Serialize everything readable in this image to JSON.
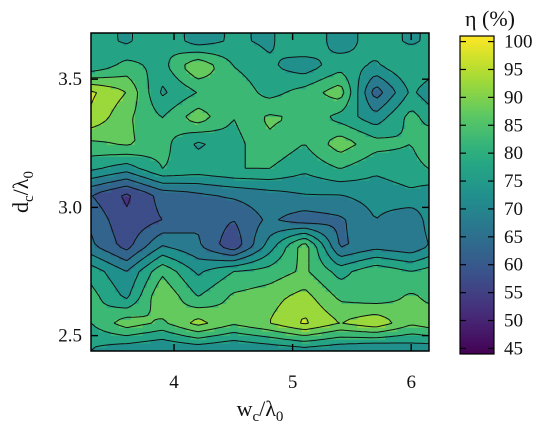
{
  "chart_data": {
    "type": "heatmap",
    "subtype": "filled-contour",
    "title": "",
    "xlabel": {
      "base": "w",
      "sub1": "c",
      "slash": "/λ",
      "sub2": "0"
    },
    "ylabel": {
      "base": "d",
      "sub1": "c",
      "slash": "/λ",
      "sub2": "0"
    },
    "xlim": [
      3.3,
      6.15
    ],
    "ylim": [
      2.44,
      3.68
    ],
    "xticks": [
      4,
      5,
      6
    ],
    "xtick_labels": [
      "4",
      "5",
      "6"
    ],
    "yticks": [
      2.5,
      3.0,
      3.5
    ],
    "ytick_labels": [
      "2.5",
      "3.0",
      "3.5"
    ],
    "colorbar": {
      "label": "η (%)",
      "min": 44,
      "max": 101,
      "ticks": [
        45,
        50,
        55,
        60,
        65,
        70,
        75,
        80,
        85,
        90,
        95,
        100
      ],
      "tick_labels": [
        "45",
        "50",
        "55",
        "60",
        "65",
        "70",
        "75",
        "80",
        "85",
        "90",
        "95",
        "100"
      ],
      "colormap": "viridis"
    },
    "grid": false,
    "z_x": [
      3.3,
      3.6,
      3.9,
      4.2,
      4.5,
      4.8,
      5.1,
      5.4,
      5.7,
      6.0,
      6.15
    ],
    "z_y": [
      2.45,
      2.55,
      2.65,
      2.75,
      2.85,
      2.95,
      3.05,
      3.15,
      3.25,
      3.35,
      3.45,
      3.55,
      3.65
    ],
    "z": [
      [
        75,
        72,
        70,
        72,
        70,
        72,
        74,
        72,
        70,
        72,
        72
      ],
      [
        80,
        88,
        84,
        92,
        86,
        90,
        96,
        90,
        94,
        86,
        88
      ],
      [
        82,
        74,
        90,
        80,
        86,
        88,
        92,
        84,
        82,
        86,
        84
      ],
      [
        78,
        70,
        84,
        74,
        80,
        82,
        86,
        78,
        84,
        80,
        82
      ],
      [
        66,
        58,
        70,
        66,
        56,
        72,
        88,
        64,
        68,
        66,
        70
      ],
      [
        64,
        56,
        60,
        64,
        60,
        66,
        62,
        64,
        70,
        66,
        72
      ],
      [
        60,
        54,
        62,
        64,
        66,
        68,
        70,
        70,
        72,
        74,
        72
      ],
      [
        76,
        72,
        80,
        78,
        80,
        80,
        76,
        80,
        76,
        78,
        80
      ],
      [
        84,
        86,
        82,
        74,
        78,
        84,
        80,
        88,
        82,
        80,
        84
      ],
      [
        94,
        86,
        80,
        88,
        80,
        86,
        84,
        78,
        72,
        82,
        78
      ],
      [
        96,
        90,
        74,
        80,
        84,
        78,
        82,
        88,
        62,
        76,
        72
      ],
      [
        76,
        82,
        78,
        90,
        80,
        76,
        72,
        78,
        74,
        80,
        78
      ],
      [
        78,
        74,
        80,
        72,
        76,
        74,
        80,
        72,
        78,
        74,
        76
      ]
    ]
  }
}
